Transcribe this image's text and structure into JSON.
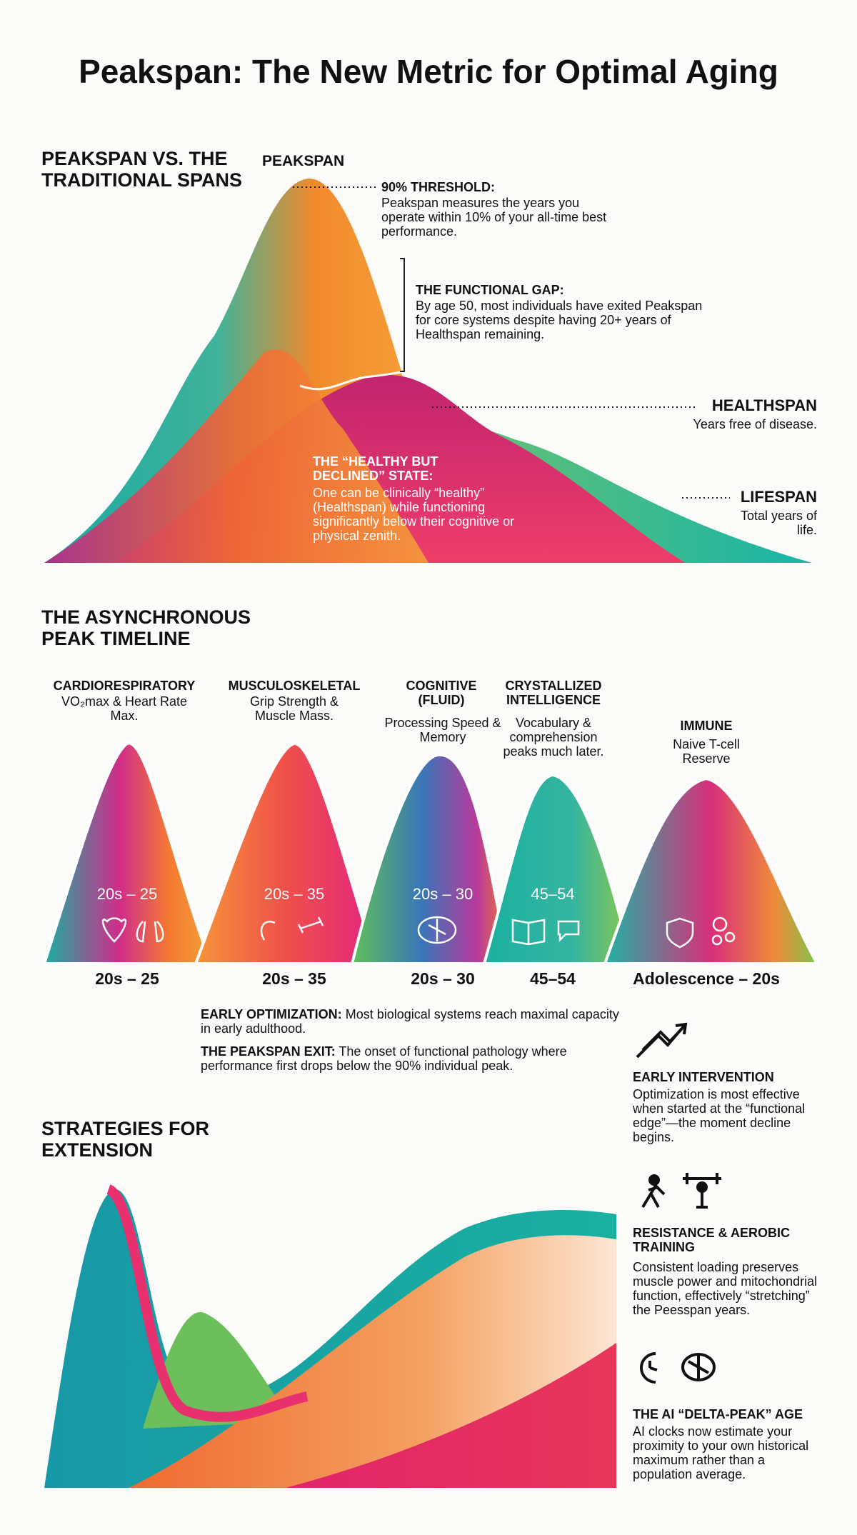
{
  "title": "Peakspan: The New Metric for Optimal Aging",
  "spans": {
    "heading": "PEAKSPAN VS. THE TRADITIONAL SPANS",
    "peak_label": "PEAKSPAN",
    "threshold": {
      "title": "90% THRESHOLD:",
      "text": "Peakspan measures the years you operate within 10% of your all-time best performance."
    },
    "gap": {
      "title": "THE FUNCTIONAL GAP:",
      "text": "By age 50, most individuals have exited Peakspan for core systems despite having 20+ years of Healthspan remaining."
    },
    "healthspan": {
      "title": "HEALTHSPAN",
      "text": "Years free of disease."
    },
    "lifespan": {
      "title": "LIFESPAN",
      "text": "Total years of life."
    },
    "state": {
      "title": "THE “HEALTHY BUT DECLINED” STATE:",
      "text": "One can be clinically “healthy” (Healthspan) while functioning significantly below their cognitive or physical zenith."
    }
  },
  "timeline": {
    "heading": "THE ASYNCHRONOUS PEAK TIMELINE",
    "systems": [
      {
        "name": "CARDIORESPIRATORY",
        "detail": "VO₂max & Heart Rate Max.",
        "peak": "20s – 25"
      },
      {
        "name": "MUSCULOSKELETAL",
        "detail": "Grip Strength & Muscle Mass.",
        "peak": "20s – 35"
      },
      {
        "name": "COGNITIVE (FLUID)",
        "detail": "Processing Speed & Memory",
        "peak": "20s – 30"
      },
      {
        "name": "CRYSTALLIZED INTELLIGENCE",
        "detail": "Vocabulary & comprehension peaks much later.",
        "peak": "45–54"
      },
      {
        "name": "IMMUNE",
        "detail": "Naive T-cell Reserve",
        "peak": "Adolescence – 20s"
      }
    ],
    "notes": [
      {
        "title": "EARLY OPTIMIZATION:",
        "text": "Most biological systems reach maximal capacity in early adulthood."
      },
      {
        "title": "THE PEAKSPAN EXIT:",
        "text": "The onset of functional pathology where performance first drops below the 90% individual peak."
      }
    ]
  },
  "extension": {
    "heading": "STRATEGIES FOR EXTENSION",
    "strategies": [
      {
        "title": "EARLY INTERVENTION",
        "text": "Optimization is most effective when started at the “functional edge”—the moment decline begins."
      },
      {
        "title": "RESISTANCE & AEROBIC TRAINING",
        "text": "Consistent loading preserves muscle power and mitochondrial function, effectively “stretching” the Peesspan years."
      },
      {
        "title": "THE AI “DELTA-PEAK” AGE",
        "text": "AI clocks now estimate your proximity to your own historical maximum rather than a population average."
      }
    ]
  }
}
